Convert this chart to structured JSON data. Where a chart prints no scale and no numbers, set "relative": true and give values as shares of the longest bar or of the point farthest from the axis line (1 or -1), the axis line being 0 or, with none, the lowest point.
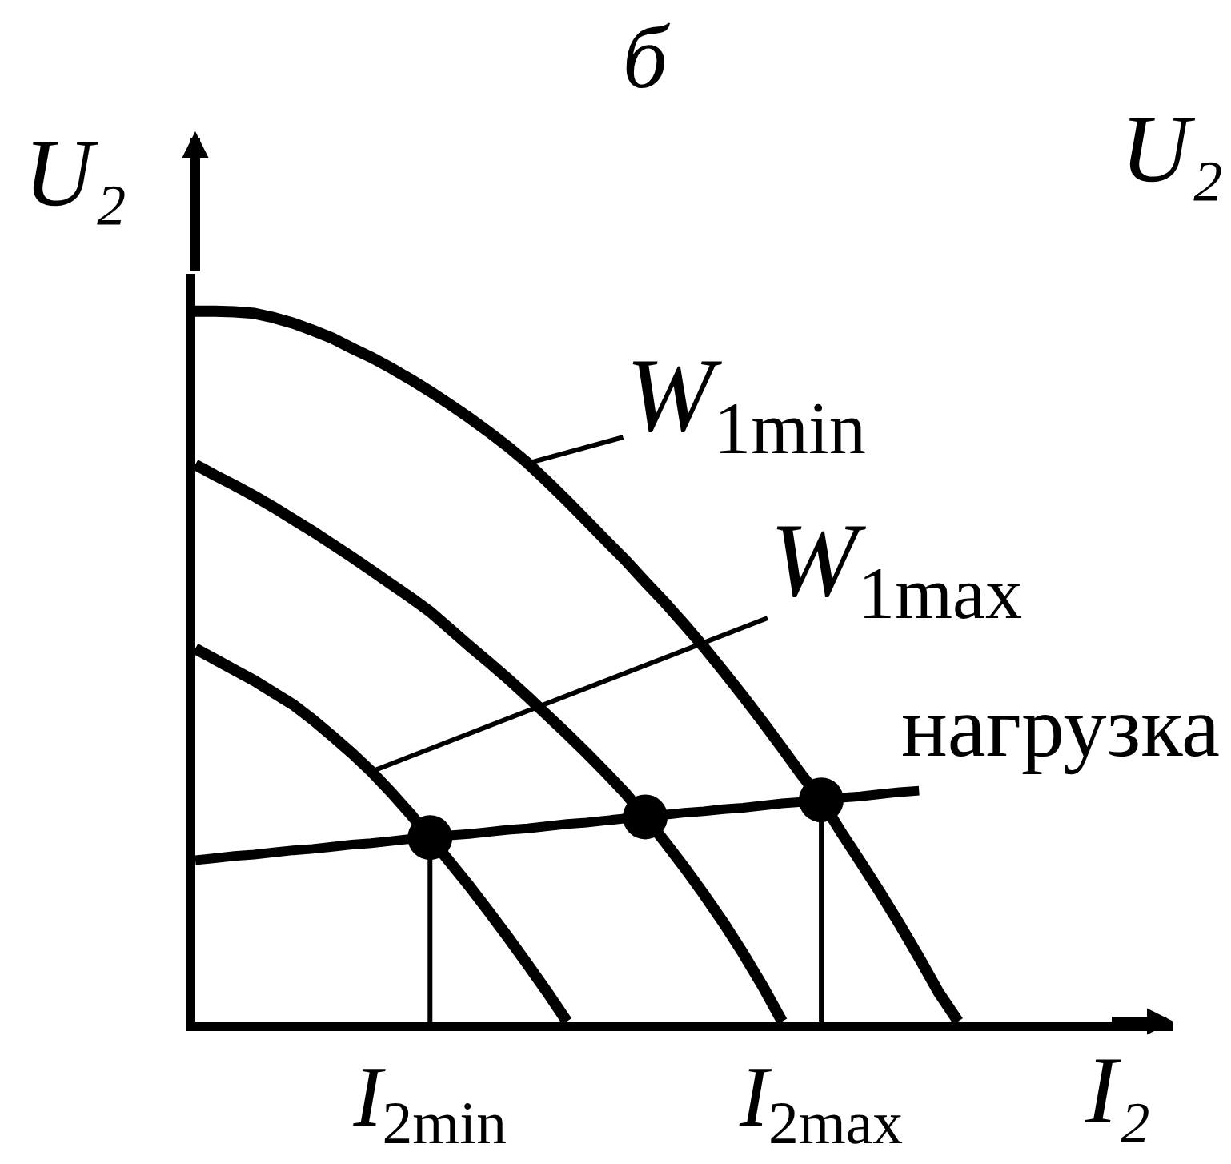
{
  "chart_data": {
    "type": "line",
    "title": "б",
    "xlabel": "I₂",
    "ylabel": "U₂",
    "relative": true,
    "tick_labels": "x",
    "categories": [
      null,
      null,
      null,
      null,
      null,
      null,
      null,
      null,
      null,
      null,
      null,
      null,
      "I$_{2min}$",
      null,
      null,
      null,
      null,
      null,
      null,
      null,
      null,
      null,
      null,
      null,
      null,
      null,
      null,
      null,
      null,
      null,
      null,
      null,
      "I$_{2max}$",
      null,
      null,
      null,
      null,
      null,
      null,
      null,
      null,
      null,
      null,
      null,
      null,
      null,
      null,
      null,
      null,
      null,
      null
    ],
    "series": [
      {
        "name": "W$_{1min}$",
        "color": "#000000",
        "values": [
          1,
          1,
          0.999,
          0.997,
          0.991,
          0.983,
          0.973,
          0.962,
          0.948,
          0.935,
          0.92,
          0.904,
          0.887,
          0.869,
          0.85,
          0.83,
          0.809,
          0.786,
          0.76,
          0.733,
          0.705,
          0.677,
          0.649,
          0.619,
          0.59,
          0.559,
          0.527,
          0.493,
          0.458,
          0.422,
          0.385,
          0.347,
          0.312,
          0.267,
          0.225,
          0.182,
          0.137,
          0.09,
          0.041,
          0,
          null,
          null,
          null,
          null,
          null,
          null,
          null,
          null,
          null,
          null,
          null
        ]
      },
      {
        "color": "#000000",
        "values": [
          0.784,
          0.769,
          0.755,
          0.74,
          0.724,
          0.707,
          0.69,
          0.672,
          0.654,
          0.635,
          0.616,
          0.597,
          0.577,
          0.553,
          0.529,
          0.506,
          0.482,
          0.457,
          0.431,
          0.405,
          0.378,
          0.35,
          0.321,
          0.288,
          0.253,
          0.217,
          0.179,
          0.139,
          0.096,
          0.05,
          0,
          null,
          null,
          null,
          null,
          null,
          null,
          null,
          null,
          null,
          null,
          null,
          null,
          null,
          null,
          null,
          null,
          null,
          null,
          null,
          null
        ]
      },
      {
        "name": "W$_{1max}$",
        "color": "#000000",
        "values": [
          0.525,
          0.51,
          0.495,
          0.48,
          0.463,
          0.446,
          0.425,
          0.402,
          0.378,
          0.352,
          0.323,
          0.292,
          0.259,
          0.225,
          0.191,
          0.155,
          0.118,
          0.08,
          0.041,
          0,
          null,
          null,
          null,
          null,
          null,
          null,
          null,
          null,
          null,
          null,
          null,
          null,
          null,
          null,
          null,
          null,
          null,
          null,
          null,
          null,
          null,
          null,
          null,
          null,
          null,
          null,
          null,
          null,
          null,
          null,
          null
        ]
      },
      {
        "name": "нагрузка",
        "color": "#000000",
        "values": [
          0.227,
          0.23,
          0.233,
          0.235,
          0.238,
          0.241,
          0.243,
          0.246,
          0.249,
          0.251,
          0.254,
          0.257,
          0.259,
          0.262,
          0.264,
          0.267,
          0.27,
          0.272,
          0.275,
          0.278,
          0.28,
          0.283,
          0.286,
          0.288,
          0.291,
          0.294,
          0.296,
          0.299,
          0.301,
          0.304,
          0.307,
          0.309,
          0.312,
          0.315,
          0.317,
          0.32,
          0.323,
          0.325,
          null,
          null,
          null,
          null,
          null,
          null,
          null,
          null,
          null,
          null,
          null,
          null,
          null
        ]
      },
      {
        "type": "lollipop",
        "marker": "circle",
        "color": "#000000",
        "values": [
          null,
          null,
          null,
          null,
          null,
          null,
          null,
          null,
          null,
          null,
          null,
          null,
          0.259,
          null,
          null,
          null,
          null,
          null,
          null,
          null,
          null,
          null,
          null,
          null,
          null,
          null,
          null,
          null,
          null,
          null,
          null,
          null,
          0.312,
          null,
          null,
          null,
          null,
          null,
          null,
          null,
          null,
          null,
          null,
          null,
          null,
          null,
          null,
          null,
          null,
          null,
          null
        ]
      },
      {
        "type": "scatter",
        "marker": "circle",
        "color": "#000000",
        "values": [
          null,
          null,
          null,
          null,
          null,
          null,
          null,
          null,
          null,
          null,
          null,
          null,
          null,
          null,
          null,
          null,
          null,
          null,
          null,
          null,
          null,
          null,
          null,
          0.288,
          null,
          null,
          null,
          null,
          null,
          null,
          null,
          null,
          null,
          null,
          null,
          null,
          null,
          null,
          null,
          null,
          null,
          null,
          null,
          null,
          null,
          null,
          null,
          null,
          null,
          null,
          null
        ]
      }
    ],
    "annotations": [
      "U₂"
    ]
  }
}
